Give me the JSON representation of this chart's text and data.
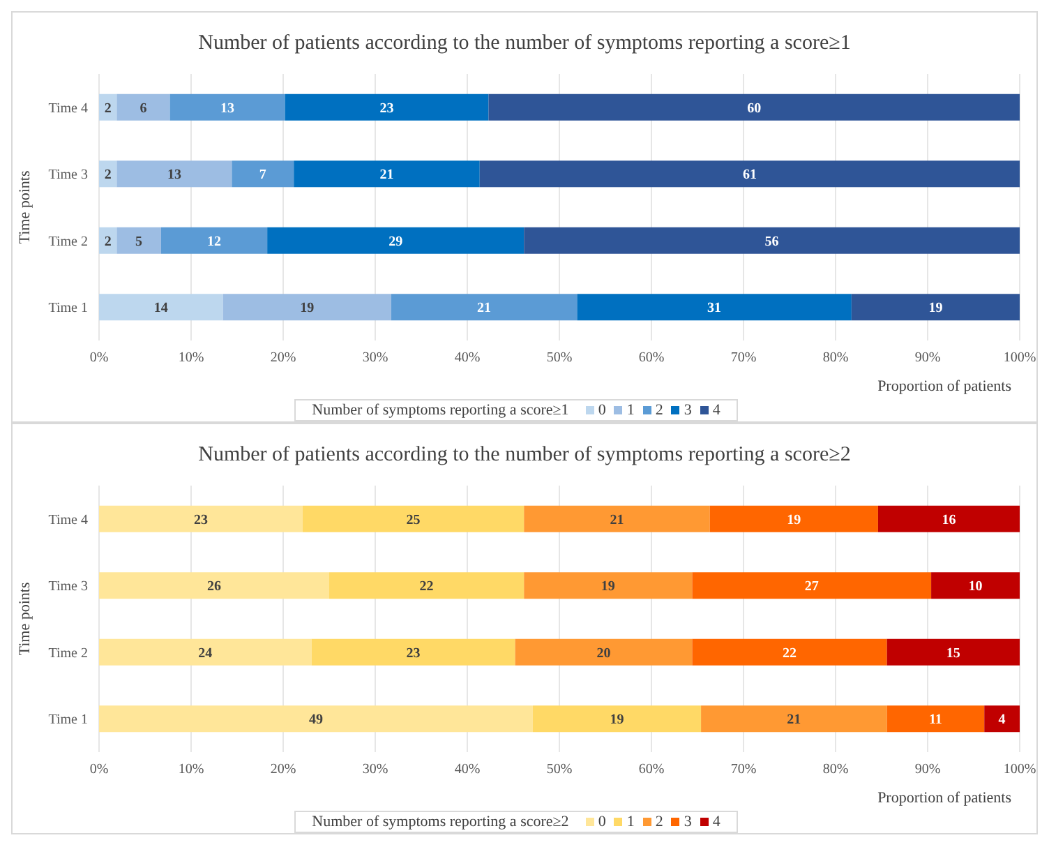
{
  "chart_data": [
    {
      "type": "bar",
      "orientation": "horizontal",
      "stacked": true,
      "title": "Number of patients according to the number of symptoms reporting a score≥1",
      "x2label": "Proportion of patients",
      "ylabel": "Time points",
      "legend_title": "Number of symptoms reporting a score≥1",
      "legend": "bottom",
      "grid": "x",
      "data_labels": true,
      "categories": [
        "Time 4",
        "Time 3",
        "Time 2",
        "Time 1"
      ],
      "xlim": [
        0,
        104
      ],
      "x2lim": [
        0,
        100
      ],
      "x2ticks": [
        {
          "value": 0,
          "label": "0%"
        },
        {
          "value": 10,
          "label": "10%"
        },
        {
          "value": 20,
          "label": "20%"
        },
        {
          "value": 30,
          "label": "30%"
        },
        {
          "value": 40,
          "label": "40%"
        },
        {
          "value": 50,
          "label": "50%"
        },
        {
          "value": 60,
          "label": "60%"
        },
        {
          "value": 70,
          "label": "70%"
        },
        {
          "value": 80,
          "label": "80%"
        },
        {
          "value": 90,
          "label": "90%"
        },
        {
          "value": 100,
          "label": "100%"
        }
      ],
      "series": [
        {
          "name": "0",
          "color": "#bdd7ee",
          "values": [
            2,
            2,
            2,
            14
          ]
        },
        {
          "name": "1",
          "color": "#9dbde3",
          "values": [
            6,
            13,
            5,
            19
          ]
        },
        {
          "name": "2",
          "color": "#5b9bd5",
          "values": [
            13,
            7,
            12,
            21
          ]
        },
        {
          "name": "3",
          "color": "#0070c0",
          "values": [
            23,
            21,
            29,
            31
          ]
        },
        {
          "name": "4",
          "color": "#2f5597",
          "values": [
            60,
            61,
            56,
            19
          ]
        }
      ]
    },
    {
      "type": "bar",
      "orientation": "horizontal",
      "stacked": true,
      "title": "Number of patients according to the number of symptoms reporting a score≥2",
      "x2label": "Proportion of patients",
      "ylabel": "Time points",
      "legend_title": "Number of symptoms reporting a score≥2",
      "legend": "bottom",
      "grid": "x",
      "data_labels": true,
      "categories": [
        "Time 4",
        "Time 3",
        "Time 2",
        "Time 1"
      ],
      "xlim": [
        0,
        104
      ],
      "x2lim": [
        0,
        100
      ],
      "x2ticks": [
        {
          "value": 0,
          "label": "0%"
        },
        {
          "value": 10,
          "label": "10%"
        },
        {
          "value": 20,
          "label": "20%"
        },
        {
          "value": 30,
          "label": "30%"
        },
        {
          "value": 40,
          "label": "40%"
        },
        {
          "value": 50,
          "label": "50%"
        },
        {
          "value": 60,
          "label": "60%"
        },
        {
          "value": 70,
          "label": "70%"
        },
        {
          "value": 80,
          "label": "80%"
        },
        {
          "value": 90,
          "label": "90%"
        },
        {
          "value": 100,
          "label": "100%"
        }
      ],
      "series": [
        {
          "name": "0",
          "color": "#ffe699",
          "values": [
            23,
            26,
            24,
            49
          ]
        },
        {
          "name": "1",
          "color": "#ffd966",
          "values": [
            25,
            22,
            23,
            19
          ]
        },
        {
          "name": "2",
          "color": "#ff9933",
          "values": [
            21,
            19,
            20,
            21
          ]
        },
        {
          "name": "3",
          "color": "#ff6600",
          "values": [
            19,
            27,
            22,
            11
          ]
        },
        {
          "name": "4",
          "color": "#c00000",
          "values": [
            16,
            10,
            15,
            4
          ]
        }
      ]
    }
  ]
}
